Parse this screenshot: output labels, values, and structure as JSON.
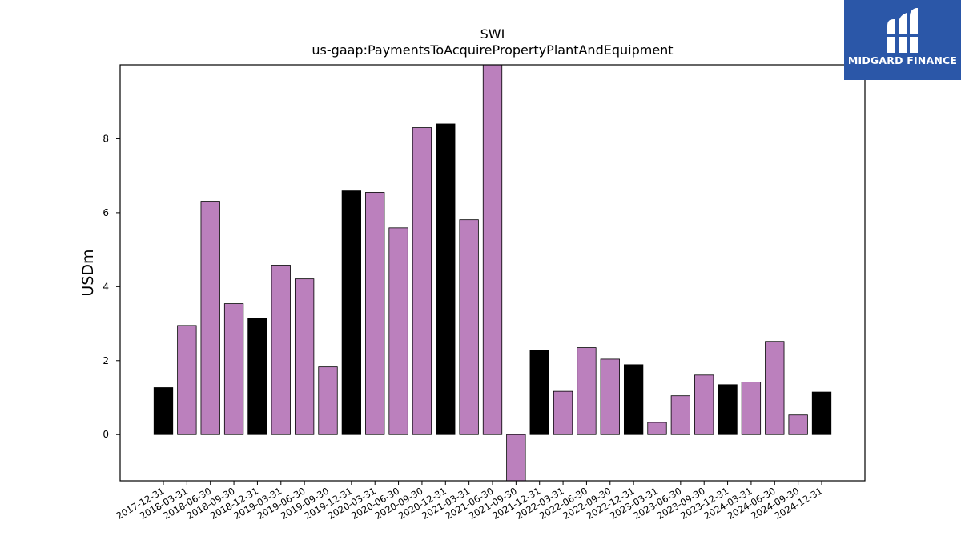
{
  "logo": {
    "text": "MIDGARD FINANCE",
    "background": "#2b57a8",
    "icon": "midgard-m-icon"
  },
  "chart_data": {
    "type": "bar",
    "title": "SWI",
    "subtitle": "us-gaap:PaymentsToAcquirePropertyPlantAndEquipment",
    "xlabel": "",
    "ylabel": "USDm",
    "ylim": [
      -1.25,
      10.0
    ],
    "yticks": [
      0,
      2,
      4,
      6,
      8
    ],
    "grid": false,
    "colors": {
      "quarterly": "#bb80bd",
      "year_end": "#000000",
      "edge": "#000000"
    },
    "categories": [
      "2017-12-31",
      "2018-03-31",
      "2018-06-30",
      "2018-09-30",
      "2018-12-31",
      "2019-03-31",
      "2019-06-30",
      "2019-09-30",
      "2019-12-31",
      "2020-03-31",
      "2020-06-30",
      "2020-09-30",
      "2020-12-31",
      "2021-03-31",
      "2021-06-30",
      "2021-09-30",
      "2021-12-31",
      "2022-03-31",
      "2022-06-30",
      "2022-09-30",
      "2022-12-31",
      "2023-03-31",
      "2023-06-30",
      "2023-09-30",
      "2023-12-31",
      "2024-03-31",
      "2024-06-30",
      "2024-09-30",
      "2024-12-31"
    ],
    "values": [
      1.27,
      2.95,
      6.31,
      3.54,
      3.15,
      4.58,
      4.21,
      1.83,
      6.59,
      6.55,
      5.59,
      8.3,
      8.4,
      5.81,
      10.0,
      -1.3,
      2.28,
      1.17,
      2.35,
      2.04,
      1.89,
      0.33,
      1.05,
      1.61,
      1.35,
      1.42,
      2.52,
      0.53,
      1.15
    ]
  }
}
